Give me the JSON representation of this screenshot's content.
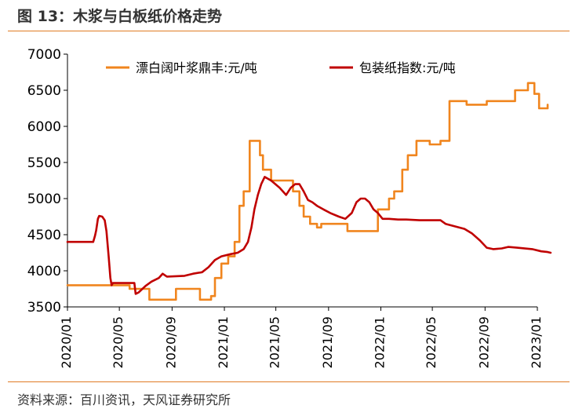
{
  "header": {
    "title": "图 13：木浆与白板纸价格走势"
  },
  "footer": {
    "source": "资料来源：百川资讯，天风证券研究所"
  },
  "colors": {
    "accent": "#e07b24",
    "pulp": "#f0851e",
    "board": "#c00000"
  },
  "chart_data": {
    "type": "line",
    "ylim": [
      3500,
      7000
    ],
    "yticks": [
      "3500",
      "4000",
      "4500",
      "5000",
      "5500",
      "6000",
      "6500",
      "7000"
    ],
    "x_start": "2020/01",
    "x_end": "2023/01",
    "xticks": [
      "2020/01",
      "2020/05",
      "2020/09",
      "2021/01",
      "2021/05",
      "2021/09",
      "2022/01",
      "2022/05",
      "2022/09",
      "2023/01"
    ],
    "legend_position": "top",
    "series": [
      {
        "name": "漂白阔叶浆鼎丰:元/吨",
        "color": "#f0851e",
        "points": [
          [
            "2020/01/01",
            3800
          ],
          [
            "2020/05/25",
            3800
          ],
          [
            "2020/05/25",
            3750
          ],
          [
            "2020/07/10",
            3750
          ],
          [
            "2020/07/10",
            3600
          ],
          [
            "2020/09/10",
            3600
          ],
          [
            "2020/09/10",
            3750
          ],
          [
            "2020/11/05",
            3750
          ],
          [
            "2020/11/05",
            3600
          ],
          [
            "2020/12/01",
            3600
          ],
          [
            "2020/12/01",
            3650
          ],
          [
            "2020/12/10",
            3650
          ],
          [
            "2020/12/10",
            3900
          ],
          [
            "2020/12/25",
            3900
          ],
          [
            "2020/12/25",
            4100
          ],
          [
            "2021/01/10",
            4100
          ],
          [
            "2021/01/10",
            4200
          ],
          [
            "2021/01/25",
            4200
          ],
          [
            "2021/01/25",
            4400
          ],
          [
            "2021/02/05",
            4400
          ],
          [
            "2021/02/05",
            4900
          ],
          [
            "2021/02/15",
            4900
          ],
          [
            "2021/02/15",
            5100
          ],
          [
            "2021/03/01",
            5100
          ],
          [
            "2021/03/01",
            5800
          ],
          [
            "2021/03/25",
            5800
          ],
          [
            "2021/03/25",
            5600
          ],
          [
            "2021/04/01",
            5600
          ],
          [
            "2021/04/01",
            5400
          ],
          [
            "2021/04/20",
            5400
          ],
          [
            "2021/04/20",
            5250
          ],
          [
            "2021/06/10",
            5250
          ],
          [
            "2021/06/10",
            5100
          ],
          [
            "2021/06/25",
            5100
          ],
          [
            "2021/06/25",
            4900
          ],
          [
            "2021/07/05",
            4900
          ],
          [
            "2021/07/05",
            4750
          ],
          [
            "2021/07/20",
            4750
          ],
          [
            "2021/07/20",
            4650
          ],
          [
            "2021/08/05",
            4650
          ],
          [
            "2021/08/05",
            4600
          ],
          [
            "2021/08/15",
            4600
          ],
          [
            "2021/08/15",
            4650
          ],
          [
            "2021/10/15",
            4650
          ],
          [
            "2021/10/15",
            4550
          ],
          [
            "2021/12/25",
            4550
          ],
          [
            "2021/12/25",
            4850
          ],
          [
            "2022/01/20",
            4850
          ],
          [
            "2022/01/20",
            5000
          ],
          [
            "2022/02/01",
            5000
          ],
          [
            "2022/02/01",
            5100
          ],
          [
            "2022/02/20",
            5100
          ],
          [
            "2022/02/20",
            5400
          ],
          [
            "2022/03/05",
            5400
          ],
          [
            "2022/03/05",
            5600
          ],
          [
            "2022/03/25",
            5600
          ],
          [
            "2022/03/25",
            5800
          ],
          [
            "2022/04/25",
            5800
          ],
          [
            "2022/04/25",
            5750
          ],
          [
            "2022/05/20",
            5750
          ],
          [
            "2022/05/20",
            5800
          ],
          [
            "2022/06/10",
            5800
          ],
          [
            "2022/06/10",
            6350
          ],
          [
            "2022/07/20",
            6350
          ],
          [
            "2022/07/20",
            6300
          ],
          [
            "2022/09/05",
            6300
          ],
          [
            "2022/09/05",
            6350
          ],
          [
            "2022/11/10",
            6350
          ],
          [
            "2022/11/10",
            6500
          ],
          [
            "2022/12/10",
            6500
          ],
          [
            "2022/12/10",
            6600
          ],
          [
            "2022/12/25",
            6600
          ],
          [
            "2022/12/25",
            6450
          ],
          [
            "2023/01/05",
            6450
          ],
          [
            "2023/01/05",
            6250
          ],
          [
            "2023/01/25",
            6250
          ],
          [
            "2023/01/25",
            6300
          ]
        ]
      },
      {
        "name": "包装纸指数:元/吨",
        "color": "#c00000",
        "points": [
          [
            "2020/01/01",
            4400
          ],
          [
            "2020/03/01",
            4400
          ],
          [
            "2020/03/05",
            4480
          ],
          [
            "2020/03/08",
            4560
          ],
          [
            "2020/03/12",
            4720
          ],
          [
            "2020/03/15",
            4760
          ],
          [
            "2020/03/22",
            4750
          ],
          [
            "2020/03/28",
            4700
          ],
          [
            "2020/04/01",
            4550
          ],
          [
            "2020/04/06",
            4200
          ],
          [
            "2020/04/10",
            3900
          ],
          [
            "2020/04/13",
            3800
          ],
          [
            "2020/04/16",
            3830
          ],
          [
            "2020/06/05",
            3830
          ],
          [
            "2020/06/08",
            3680
          ],
          [
            "2020/06/15",
            3700
          ],
          [
            "2020/07/01",
            3790
          ],
          [
            "2020/07/15",
            3850
          ],
          [
            "2020/08/01",
            3900
          ],
          [
            "2020/08/10",
            3960
          ],
          [
            "2020/08/20",
            3920
          ],
          [
            "2020/09/30",
            3930
          ],
          [
            "2020/10/20",
            3960
          ],
          [
            "2020/11/10",
            3980
          ],
          [
            "2020/11/25",
            4050
          ],
          [
            "2020/12/10",
            4150
          ],
          [
            "2020/12/25",
            4200
          ],
          [
            "2021/01/15",
            4230
          ],
          [
            "2021/02/01",
            4250
          ],
          [
            "2021/02/15",
            4300
          ],
          [
            "2021/02/25",
            4400
          ],
          [
            "2021/03/05",
            4600
          ],
          [
            "2021/03/12",
            4850
          ],
          [
            "2021/03/20",
            5050
          ],
          [
            "2021/03/28",
            5200
          ],
          [
            "2021/04/05",
            5300
          ],
          [
            "2021/04/20",
            5250
          ],
          [
            "2021/05/10",
            5150
          ],
          [
            "2021/05/25",
            5050
          ],
          [
            "2021/06/05",
            5150
          ],
          [
            "2021/06/15",
            5200
          ],
          [
            "2021/06/25",
            5200
          ],
          [
            "2021/07/05",
            5100
          ],
          [
            "2021/07/15",
            4980
          ],
          [
            "2021/07/25",
            4950
          ],
          [
            "2021/08/05",
            4900
          ],
          [
            "2021/08/20",
            4850
          ],
          [
            "2021/09/05",
            4800
          ],
          [
            "2021/09/25",
            4750
          ],
          [
            "2021/10/10",
            4720
          ],
          [
            "2021/10/25",
            4800
          ],
          [
            "2021/11/05",
            4950
          ],
          [
            "2021/11/15",
            5000
          ],
          [
            "2021/11/25",
            5000
          ],
          [
            "2021/12/05",
            4950
          ],
          [
            "2021/12/15",
            4850
          ],
          [
            "2021/12/25",
            4800
          ],
          [
            "2022/01/05",
            4720
          ],
          [
            "2022/01/20",
            4720
          ],
          [
            "2022/02/10",
            4710
          ],
          [
            "2022/03/01",
            4710
          ],
          [
            "2022/04/01",
            4700
          ],
          [
            "2022/05/20",
            4700
          ],
          [
            "2022/06/01",
            4650
          ],
          [
            "2022/06/20",
            4620
          ],
          [
            "2022/07/15",
            4580
          ],
          [
            "2022/08/01",
            4520
          ],
          [
            "2022/08/20",
            4420
          ],
          [
            "2022/09/05",
            4320
          ],
          [
            "2022/09/20",
            4300
          ],
          [
            "2022/10/10",
            4310
          ],
          [
            "2022/10/25",
            4330
          ],
          [
            "2022/11/15",
            4320
          ],
          [
            "2022/12/20",
            4300
          ],
          [
            "2023/01/10",
            4270
          ],
          [
            "2023/01/25",
            4260
          ],
          [
            "2023/02/01",
            4250
          ]
        ]
      }
    ]
  }
}
